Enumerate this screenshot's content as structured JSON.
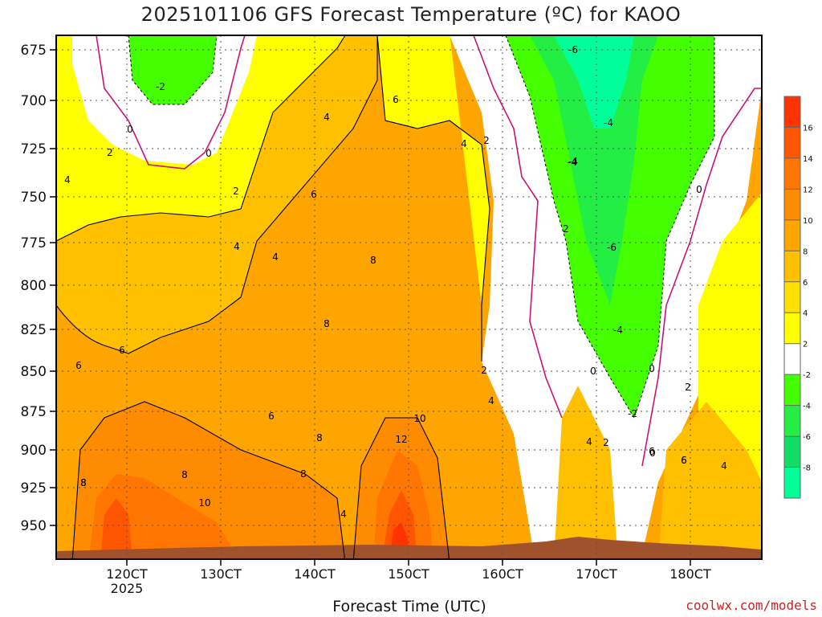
{
  "chart_data": {
    "type": "heatmap",
    "title": "2025101106 GFS Forecast Temperature (ºC) for KAOO",
    "xlabel": "Forecast Time (UTC)",
    "ylabel": "",
    "x_ticks": [
      "120CT",
      "130CT",
      "140CT",
      "150CT",
      "160CT",
      "170CT",
      "180CT"
    ],
    "x_year_label": "2025",
    "y_ticks": [
      "675",
      "700",
      "725",
      "750",
      "775",
      "800",
      "825",
      "850",
      "875",
      "900",
      "925",
      "950"
    ],
    "ylim": [
      965,
      665
    ],
    "colorbar": {
      "levels": [
        "16",
        "14",
        "12",
        "10",
        "8",
        "6",
        "4",
        "2",
        "-2",
        "-4",
        "-6",
        "-8"
      ],
      "colors": [
        "#ff3300",
        "#ff5500",
        "#ff7700",
        "#ff8c00",
        "#ffa500",
        "#ffc000",
        "#ffe000",
        "#ffff00",
        "#ffffff",
        "#44ff00",
        "#22ee44",
        "#11dd66",
        "#00ff99"
      ]
    },
    "contour_labels": [
      "-6",
      "-2",
      "0",
      "0",
      "2",
      "4",
      "4",
      "2",
      "-4",
      "-4",
      "6",
      "4",
      "-4",
      "2",
      "0",
      "6",
      "-6",
      "2",
      "4",
      "4",
      "8",
      "8",
      "6",
      "6",
      "-4",
      "0",
      "0",
      "2",
      "4",
      "6",
      "10",
      "8",
      "8",
      "8",
      "8",
      "12",
      "10",
      "4",
      "2",
      "6",
      "6",
      "4",
      "-2",
      "2",
      "0",
      "8",
      "4",
      "6"
    ],
    "grid": true
  },
  "credit": "coolwx.com/models"
}
